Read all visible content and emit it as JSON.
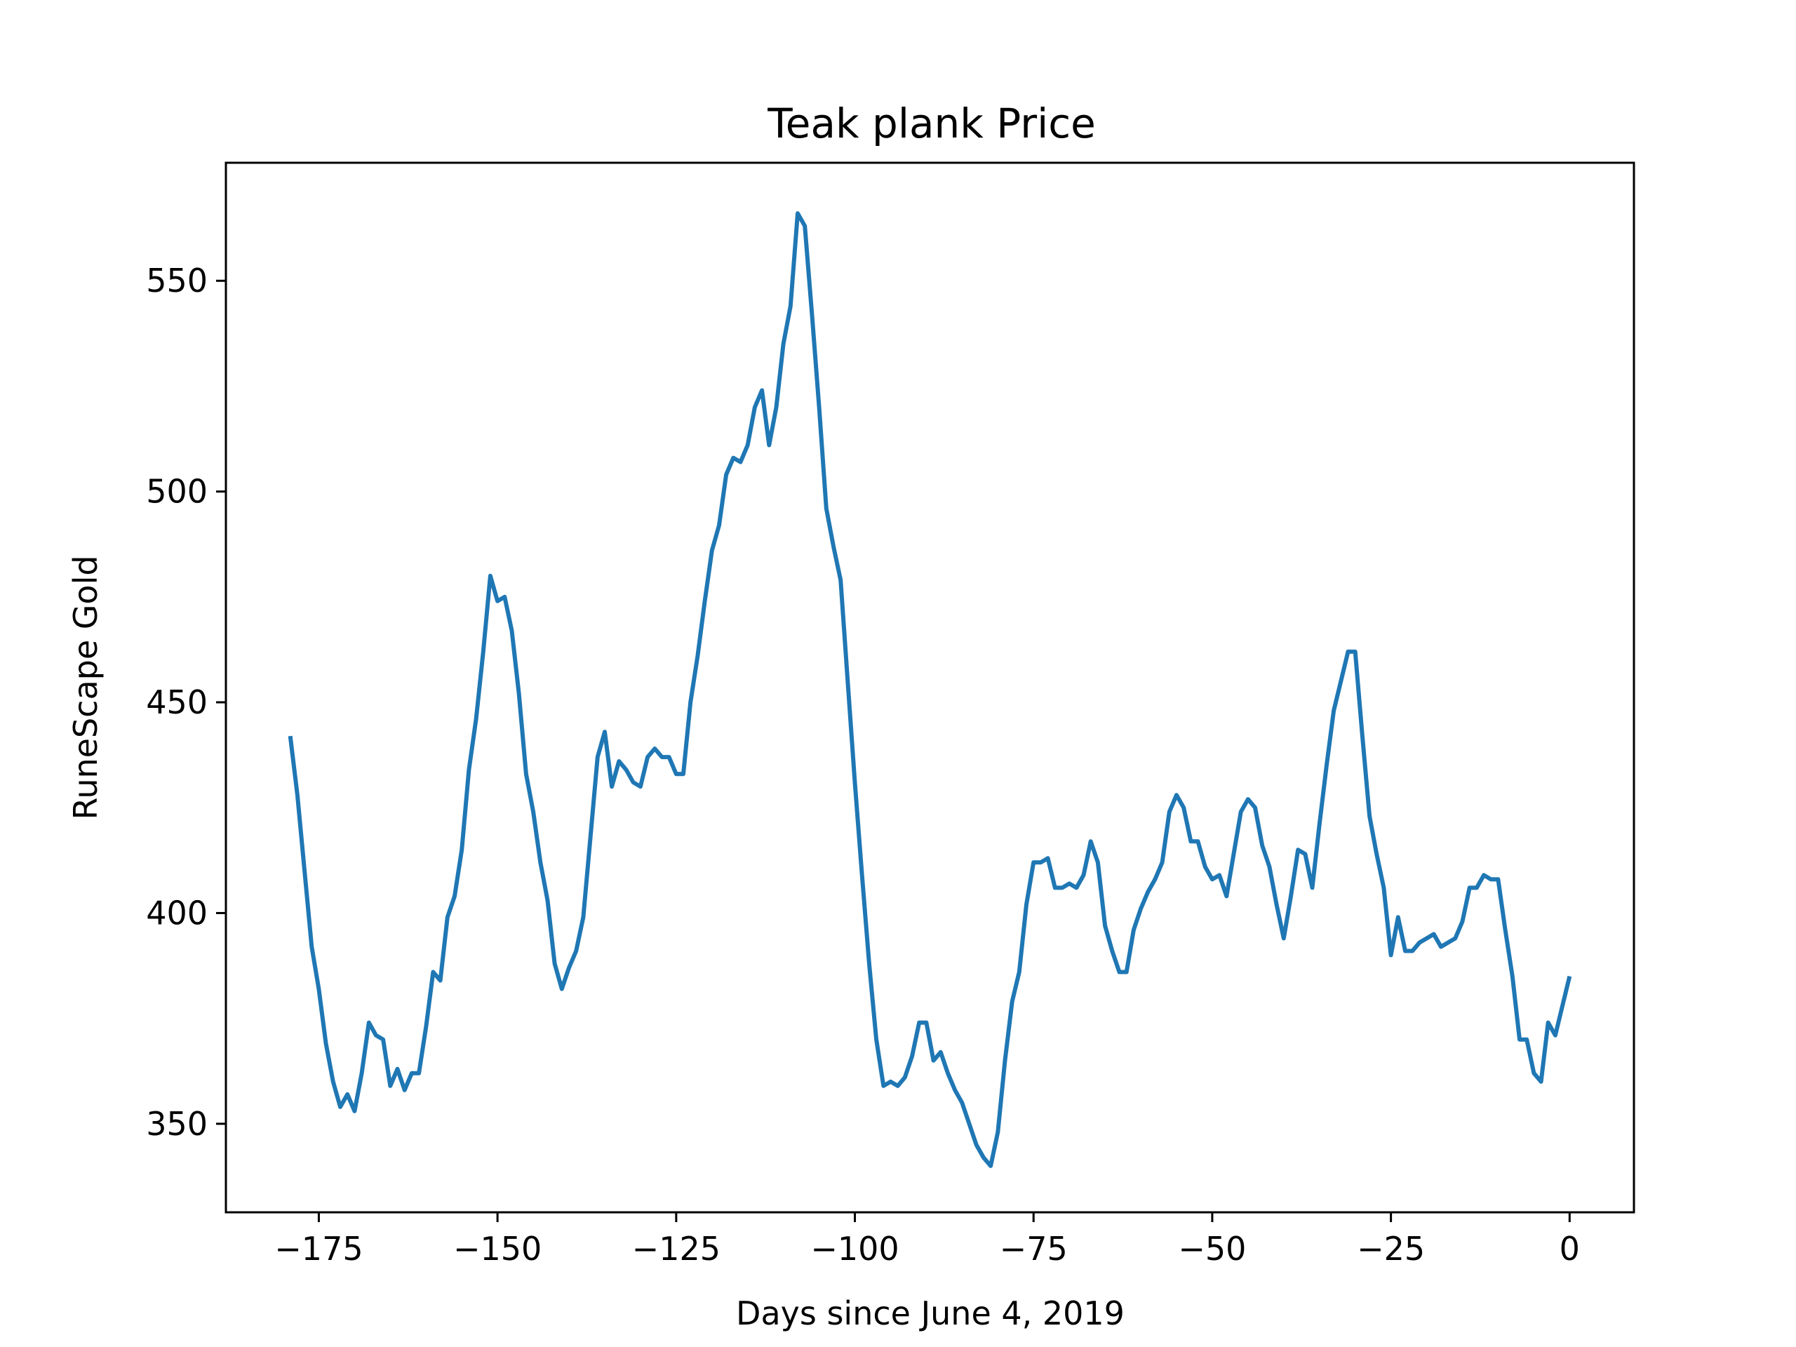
{
  "chart_data": {
    "type": "line",
    "title": "Teak plank Price",
    "xlabel": "Days since June 4, 2019",
    "ylabel": "RuneScape Gold",
    "xlim": [
      -188,
      9
    ],
    "ylim": [
      329,
      578
    ],
    "xticks": [
      -175,
      -150,
      -125,
      -100,
      -75,
      -50,
      -25,
      0
    ],
    "xtick_labels": [
      "−175",
      "−150",
      "−125",
      "−100",
      "−75",
      "−50",
      "−25",
      "0"
    ],
    "yticks": [
      350,
      400,
      450,
      500,
      550
    ],
    "ytick_labels": [
      "350",
      "400",
      "450",
      "500",
      "550"
    ],
    "grid": false,
    "line_color": "#1f77b4",
    "series": [
      {
        "x": [
          -179,
          -178,
          -177,
          -176,
          -175,
          -174,
          -173,
          -172,
          -171,
          -170,
          -169,
          -168,
          -167,
          -166,
          -165,
          -164,
          -163,
          -162,
          -161,
          -160,
          -159,
          -158,
          -157,
          -156,
          -155,
          -154,
          -153,
          -152,
          -151,
          -150,
          -149,
          -148,
          -147,
          -146,
          -145,
          -144,
          -143,
          -142,
          -141,
          -140,
          -139,
          -138,
          -137,
          -136,
          -135,
          -134,
          -133,
          -132,
          -131,
          -130,
          -129,
          -128,
          -127,
          -126,
          -125,
          -124,
          -123,
          -122,
          -121,
          -120,
          -119,
          -118,
          -117,
          -116,
          -115,
          -114,
          -113,
          -112,
          -111,
          -110,
          -109,
          -108,
          -107,
          -106,
          -105,
          -104,
          -103,
          -102,
          -101,
          -100,
          -99,
          -98,
          -97,
          -96,
          -95,
          -94,
          -93,
          -92,
          -91,
          -90,
          -89,
          -88,
          -87,
          -86,
          -85,
          -84,
          -83,
          -82,
          -81,
          -80,
          -79,
          -78,
          -77,
          -76,
          -75,
          -74,
          -73,
          -72,
          -71,
          -70,
          -69,
          -68,
          -67,
          -66,
          -65,
          -64,
          -63,
          -62,
          -61,
          -60,
          -59,
          -58,
          -57,
          -56,
          -55,
          -54,
          -53,
          -52,
          -51,
          -50,
          -49,
          -48,
          -47,
          -46,
          -45,
          -44,
          -43,
          -42,
          -41,
          -40,
          -39,
          -38,
          -37,
          -36,
          -35,
          -34,
          -33,
          -32,
          -31,
          -30,
          -29,
          -28,
          -27,
          -26,
          -25,
          -24,
          -23,
          -22,
          -21,
          -20,
          -19,
          -18,
          -17,
          -16,
          -15,
          -14,
          -13,
          -12,
          -11,
          -10,
          -9,
          -8,
          -7,
          -6,
          -5,
          -4,
          -3,
          -2,
          -1,
          0
        ],
        "y": [
          442,
          428,
          410,
          392,
          382,
          369,
          360,
          354,
          357,
          353,
          362,
          374,
          371,
          370,
          359,
          363,
          358,
          362,
          362,
          373,
          386,
          384,
          399,
          404,
          415,
          434,
          446,
          462,
          480,
          474,
          475,
          467,
          452,
          433,
          424,
          412,
          403,
          388,
          382,
          387,
          391,
          399,
          418,
          437,
          443,
          430,
          436,
          434,
          431,
          430,
          437,
          439,
          437,
          437,
          433,
          433,
          450,
          461,
          474,
          486,
          492,
          504,
          508,
          507,
          511,
          520,
          524,
          511,
          520,
          535,
          544,
          566,
          563,
          542,
          520,
          496,
          487,
          479,
          455,
          431,
          409,
          388,
          370,
          359,
          360,
          359,
          361,
          366,
          374,
          374,
          365,
          367,
          362,
          358,
          355,
          350,
          345,
          342,
          340,
          348,
          365,
          379,
          386,
          402,
          412,
          412,
          413,
          406,
          406,
          407,
          406,
          409,
          417,
          412,
          397,
          391,
          386,
          386,
          396,
          401,
          405,
          408,
          412,
          424,
          428,
          425,
          417,
          417,
          411,
          408,
          409,
          404,
          414,
          424,
          427,
          425,
          416,
          411,
          402,
          394,
          404,
          415,
          414,
          406,
          421,
          435,
          448,
          455,
          462,
          462,
          442,
          423,
          414,
          406,
          390,
          399,
          391,
          391,
          393,
          394,
          395,
          392,
          393,
          394,
          398,
          406,
          406,
          409,
          408,
          408,
          396,
          385,
          370,
          370,
          362,
          360,
          374,
          371,
          378,
          385
        ]
      }
    ]
  }
}
